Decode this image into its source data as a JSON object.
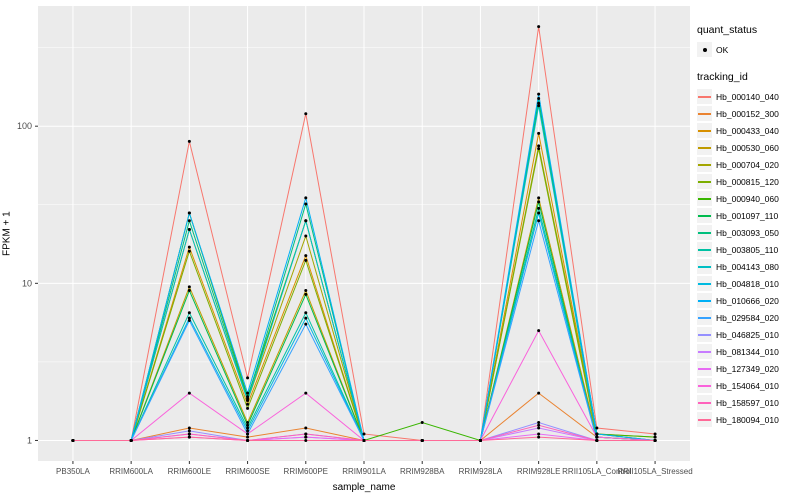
{
  "chart_data": {
    "type": "line",
    "title": "",
    "xlabel": "sample_name",
    "ylabel": "FPKM + 1",
    "y_scale": "log10",
    "grid": true,
    "legend_position": "right",
    "panel_bg": "#EBEBEB",
    "grid_color": "#FFFFFF",
    "point_color": "#000000",
    "y_ticks": [
      1,
      10,
      100
    ],
    "y_minor": [
      3.162,
      31.62,
      316.2
    ],
    "ylim": [
      0.74,
      582
    ],
    "categories": [
      "PB350LA",
      "RRIM600LA",
      "RRIM600LE",
      "RRIM600SE",
      "RRIM600PE",
      "RRIM901LA",
      "RRIM928BA",
      "RRIM928LA",
      "RRIM928LE",
      "RRII105LA_Control",
      "RRII105LA_Stressed"
    ],
    "series": [
      {
        "name": "Hb_000140_040",
        "color": "#F8766D",
        "values": [
          1,
          1,
          80,
          2.5,
          120,
          1.1,
          1,
          1,
          430,
          1.2,
          1.1
        ]
      },
      {
        "name": "Hb_000152_300",
        "color": "#EA8331",
        "values": [
          1,
          1,
          1.2,
          1.05,
          1.2,
          1,
          1,
          1,
          2,
          1.05,
          1
        ]
      },
      {
        "name": "Hb_000433_040",
        "color": "#D89000",
        "values": [
          1,
          1,
          17,
          1.7,
          15,
          1,
          1,
          1,
          90,
          1.1,
          1.05
        ]
      },
      {
        "name": "Hb_000530_060",
        "color": "#C09B00",
        "values": [
          1,
          1,
          9.5,
          1.3,
          9,
          1,
          1,
          1,
          35,
          1.05,
          1
        ]
      },
      {
        "name": "Hb_000704_020",
        "color": "#A3A500",
        "values": [
          1,
          1,
          22,
          1.8,
          20,
          1,
          1,
          1,
          75,
          1.1,
          1
        ]
      },
      {
        "name": "Hb_000815_120",
        "color": "#7CAE00",
        "values": [
          1,
          1,
          16,
          1.6,
          14,
          1,
          1,
          1,
          72,
          1.05,
          1
        ]
      },
      {
        "name": "Hb_000940_060",
        "color": "#39B600",
        "values": [
          1,
          1,
          28,
          1.9,
          25,
          1,
          1.3,
          1,
          140,
          1.1,
          1.05
        ]
      },
      {
        "name": "Hb_001097_110",
        "color": "#00BB4E",
        "values": [
          1,
          1,
          9,
          1.25,
          8.5,
          1,
          1,
          1,
          33,
          1,
          1
        ]
      },
      {
        "name": "Hb_003093_050",
        "color": "#00BF7D",
        "values": [
          1,
          1,
          25,
          1.85,
          32,
          1,
          1,
          1,
          150,
          1.1,
          1
        ]
      },
      {
        "name": "Hb_003805_110",
        "color": "#00C1A3",
        "values": [
          1,
          1,
          6.5,
          1.2,
          6.5,
          1,
          1,
          1,
          30,
          1,
          1
        ]
      },
      {
        "name": "Hb_004143_080",
        "color": "#00BFC4",
        "values": [
          1,
          1,
          22,
          1.8,
          25,
          1,
          1,
          1,
          135,
          1.05,
          1
        ]
      },
      {
        "name": "Hb_004818_010",
        "color": "#00BAE0",
        "values": [
          1,
          1,
          6,
          1.15,
          6,
          1,
          1,
          1,
          28,
          1,
          1
        ]
      },
      {
        "name": "Hb_010666_020",
        "color": "#00B0F6",
        "values": [
          1,
          1,
          28,
          2.0,
          35,
          1,
          1,
          1,
          160,
          1.1,
          1
        ]
      },
      {
        "name": "Hb_029584_020",
        "color": "#35A2FF",
        "values": [
          1,
          1,
          5.8,
          1.1,
          5.5,
          1,
          1,
          1,
          25,
          1,
          1
        ]
      },
      {
        "name": "Hb_046825_010",
        "color": "#9590FF",
        "values": [
          1,
          1,
          1.15,
          1,
          1.1,
          1,
          1,
          1,
          1.3,
          1,
          1
        ]
      },
      {
        "name": "Hb_081344_010",
        "color": "#C77CFF",
        "values": [
          1,
          1,
          1.1,
          1,
          1.05,
          1,
          1,
          1,
          1.2,
          1,
          1
        ]
      },
      {
        "name": "Hb_127349_020",
        "color": "#E76BF3",
        "values": [
          1,
          1,
          1.05,
          1,
          1.05,
          1,
          1,
          1,
          1.1,
          1,
          1
        ]
      },
      {
        "name": "Hb_154064_010",
        "color": "#FA62DB",
        "values": [
          1,
          1,
          2,
          1.1,
          2,
          1,
          1,
          1,
          5,
          1.05,
          1
        ]
      },
      {
        "name": "Hb_158597_010",
        "color": "#FF62BC",
        "values": [
          1,
          1,
          1.1,
          1,
          1.1,
          1,
          1,
          1,
          1.25,
          1,
          1
        ]
      },
      {
        "name": "Hb_180094_010",
        "color": "#FF6A98",
        "values": [
          1,
          1,
          1.05,
          1,
          1,
          1,
          1,
          1,
          1.05,
          1,
          1
        ]
      }
    ]
  },
  "legend": {
    "quant_status": {
      "title": "quant_status",
      "items": [
        {
          "label": "OK",
          "marker": "point"
        }
      ]
    },
    "tracking_id": {
      "title": "tracking_id"
    }
  }
}
